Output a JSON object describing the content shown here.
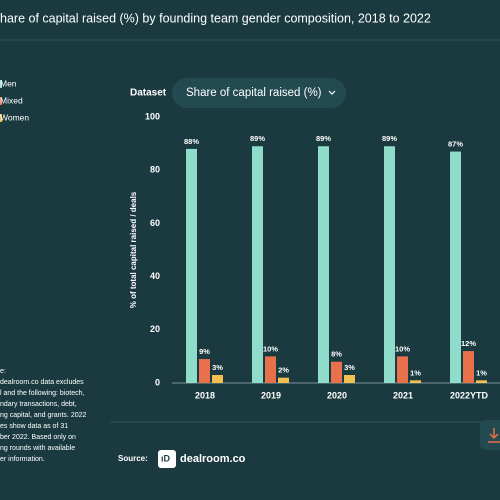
{
  "chart_data": {
    "type": "bar",
    "title": "hare of capital raised (%) by founding team gender composition, 2018 to 2022",
    "y_label": "% of total capital raised / deals",
    "categories": [
      "2018",
      "2019",
      "2020",
      "2021",
      "2022YTD"
    ],
    "series": [
      {
        "name": "Men",
        "color": "#8fdccb",
        "values": [
          88,
          89,
          89,
          89,
          87
        ],
        "value_labels": [
          "88%",
          "89%",
          "89%",
          "89%",
          "87%"
        ]
      },
      {
        "name": "Mixed",
        "color": "#e8704a",
        "values": [
          9,
          10,
          8,
          10,
          12
        ],
        "value_labels": [
          "9%",
          "10%",
          "8%",
          "10%",
          "12%"
        ]
      },
      {
        "name": "Women",
        "color": "#f3c04f",
        "values": [
          3,
          2,
          3,
          1,
          1
        ],
        "value_labels": [
          "3%",
          "2%",
          "3%",
          "1%",
          "1%"
        ]
      }
    ],
    "ylim": [
      0,
      100
    ],
    "yticks": [
      0,
      20,
      40,
      60,
      80,
      100
    ],
    "grid": false
  },
  "controls": {
    "dataset_label": "Dataset",
    "dropdown": "Share of capital raised (%)"
  },
  "notes": [
    "e:",
    "dealroom.co data excludes",
    "l and the following: biotech,",
    "ndary transactions, debt,",
    "ng capital, and grants. 2022",
    "es show data as of 31",
    "ber 2022. Based only on",
    "ng rounds with available",
    "er information."
  ],
  "footer": {
    "source_label": "Source:",
    "logo": "dealroom.co"
  }
}
